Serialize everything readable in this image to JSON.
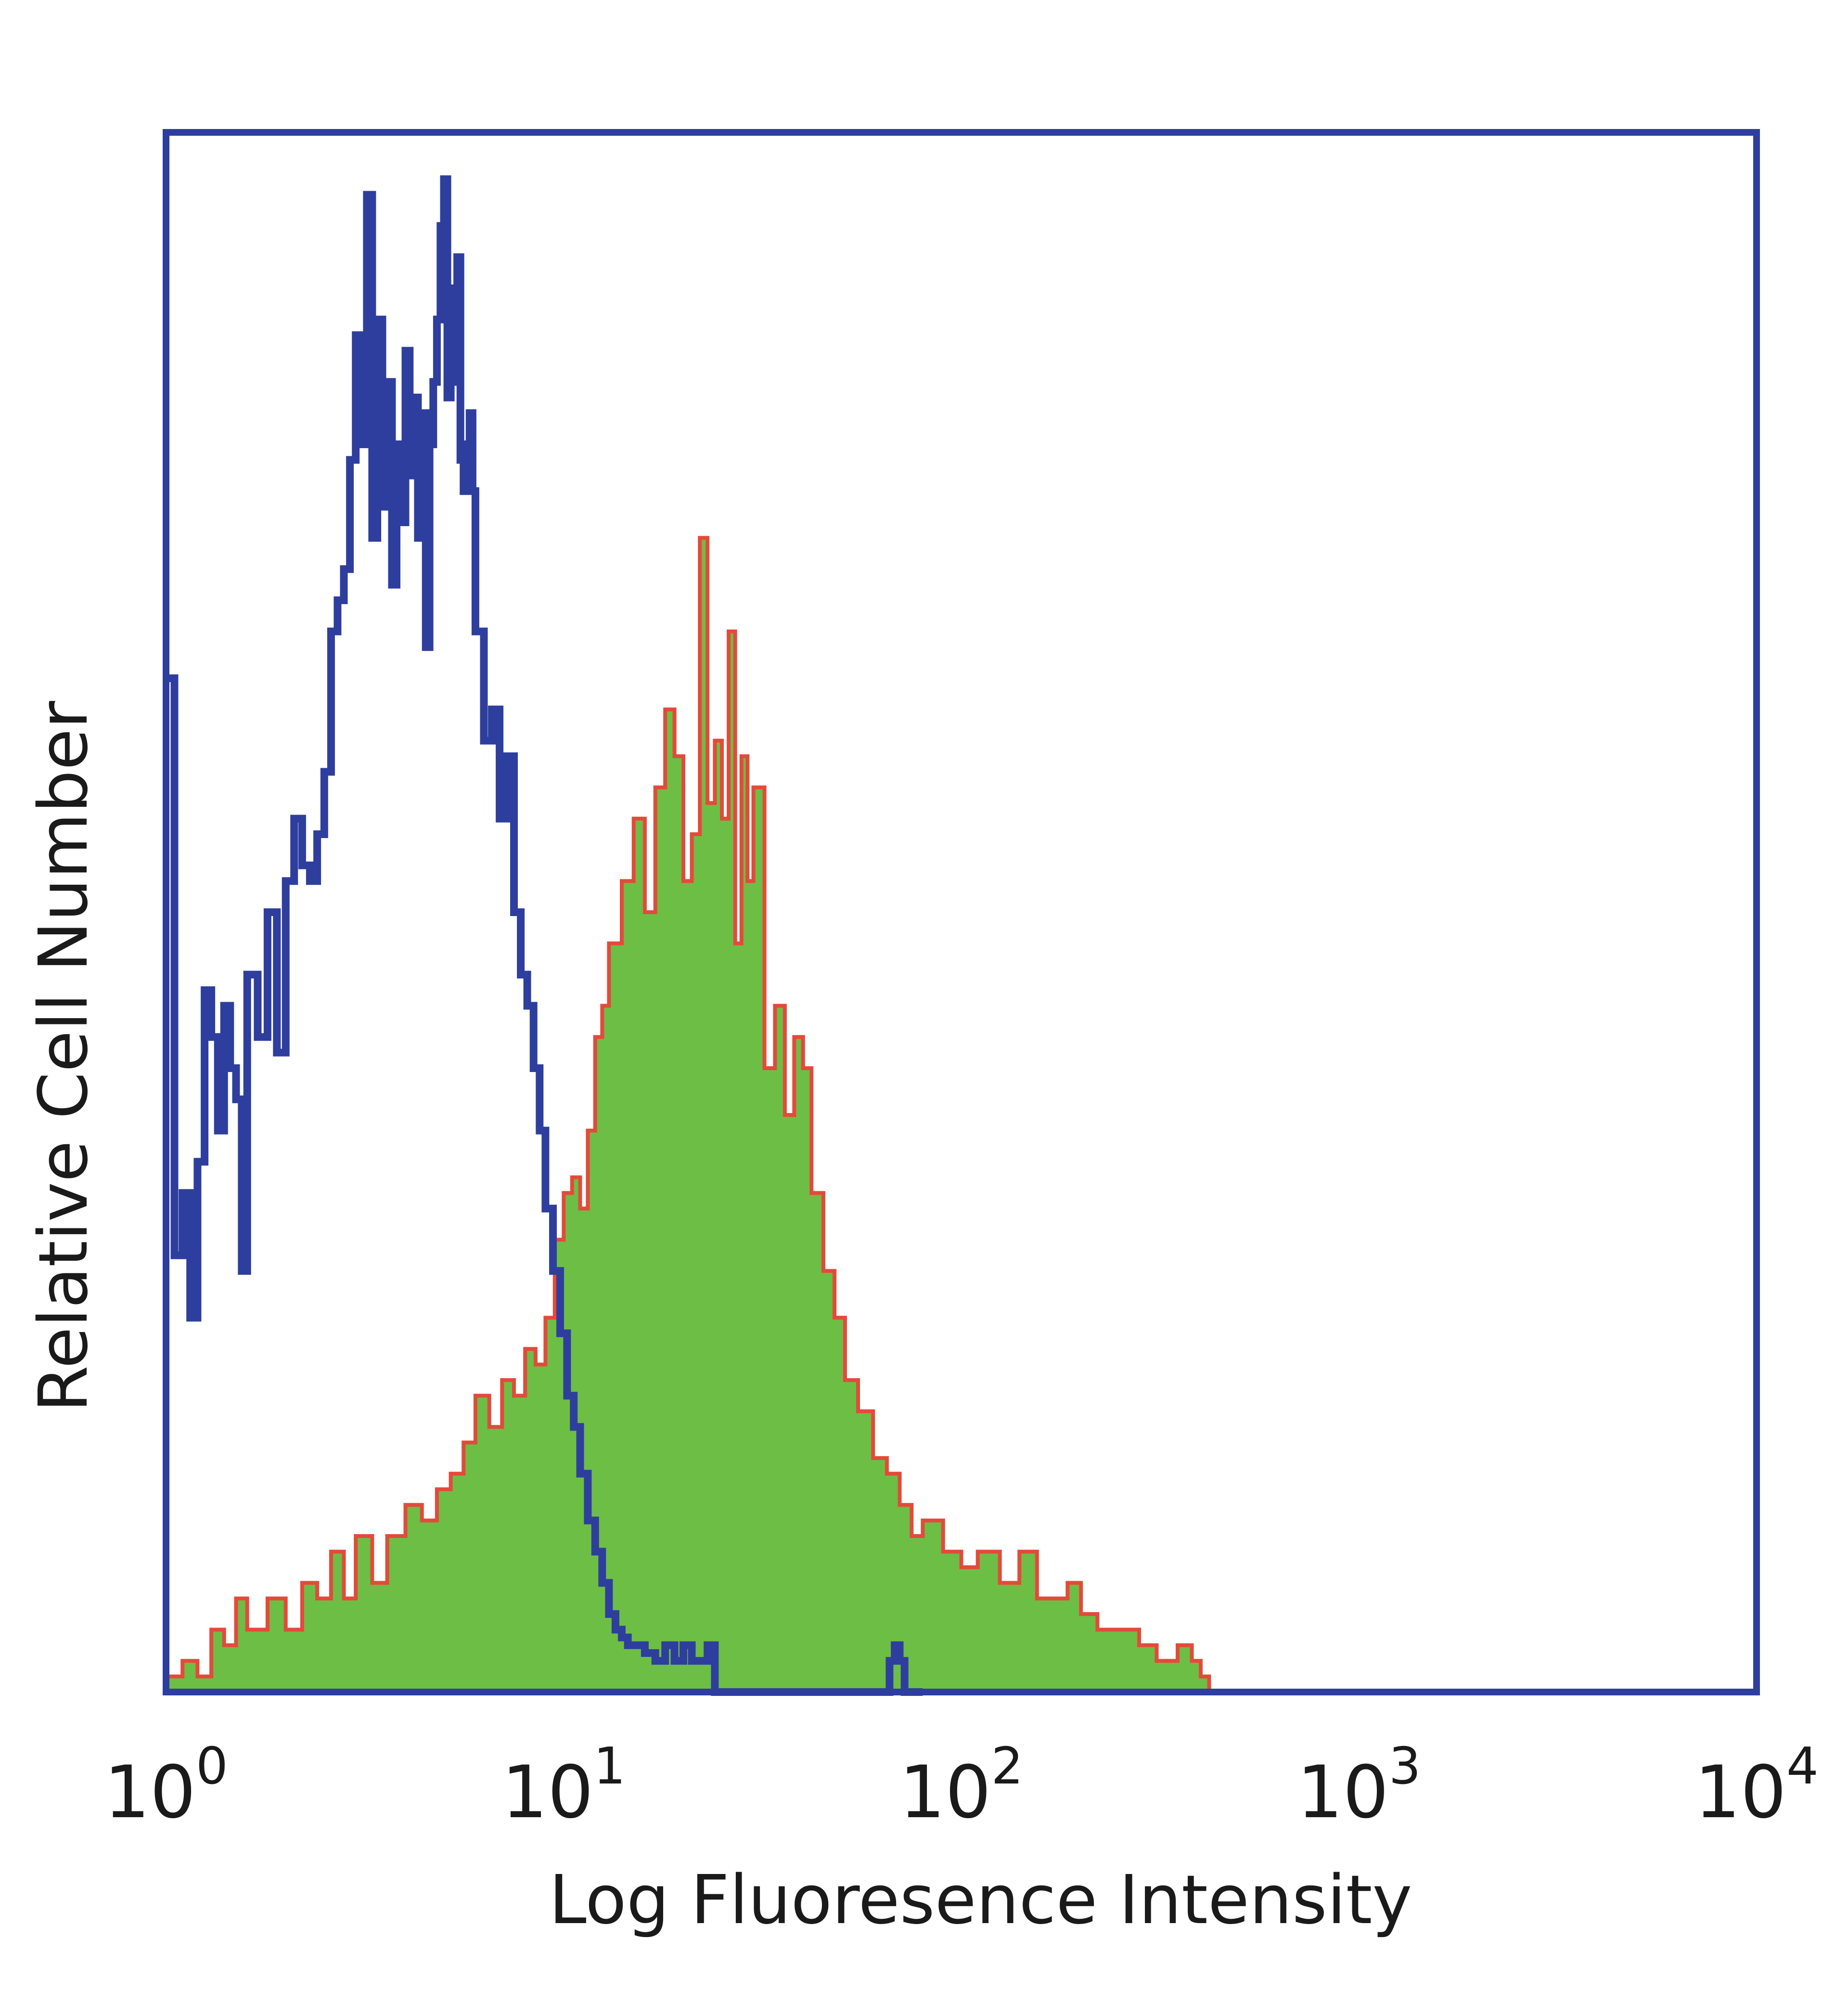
{
  "chart_data": {
    "type": "area",
    "xscale": "log",
    "xlim": [
      1,
      10000
    ],
    "ylim": [
      0,
      1
    ],
    "xlabel": "Log Fluoresence Intensity",
    "ylabel": "Relative Cell Number",
    "grid": false,
    "xticks": [
      {
        "base": "10",
        "exp": "0",
        "value": 1
      },
      {
        "base": "10",
        "exp": "1",
        "value": 10
      },
      {
        "base": "10",
        "exp": "2",
        "value": 100
      },
      {
        "base": "10",
        "exp": "3",
        "value": 1000
      },
      {
        "base": "10",
        "exp": "4",
        "value": 10000
      }
    ],
    "series": [
      {
        "style": "filled",
        "color": "#6dbe45",
        "edge_color": "#e34a3a",
        "x": [
          1.0,
          1.1,
          1.2,
          1.3,
          1.4,
          1.5,
          1.6,
          1.7,
          1.8,
          2.0,
          2.2,
          2.4,
          2.6,
          2.8,
          3.0,
          3.3,
          3.6,
          4.0,
          4.4,
          4.8,
          5.2,
          5.6,
          6.0,
          6.5,
          7.0,
          7.5,
          8.0,
          8.5,
          9.0,
          9.5,
          10.0,
          10.5,
          11.0,
          11.5,
          12.0,
          12.5,
          13.0,
          14.0,
          15.0,
          16.0,
          17.0,
          18.0,
          19.0,
          20.0,
          21.0,
          22.0,
          23.0,
          24.0,
          25.0,
          26.0,
          27.0,
          28.0,
          29.0,
          30.0,
          32.0,
          34.0,
          36.0,
          38.0,
          40.0,
          42.0,
          45.0,
          48.0,
          51.0,
          55.0,
          60.0,
          65.0,
          70.0,
          75.0,
          80.0,
          90.0,
          100.0,
          110.0,
          125.0,
          140.0,
          155.0,
          170.0,
          185.0,
          200.0,
          220.0,
          250.0,
          280.0,
          310.0,
          350.0,
          380.0,
          400.0,
          420.0
        ],
        "values": [
          0.01,
          0.02,
          0.01,
          0.04,
          0.03,
          0.06,
          0.04,
          0.04,
          0.06,
          0.04,
          0.07,
          0.06,
          0.09,
          0.06,
          0.1,
          0.07,
          0.1,
          0.12,
          0.11,
          0.13,
          0.14,
          0.16,
          0.19,
          0.17,
          0.2,
          0.19,
          0.22,
          0.21,
          0.24,
          0.29,
          0.32,
          0.33,
          0.31,
          0.36,
          0.42,
          0.44,
          0.48,
          0.52,
          0.56,
          0.5,
          0.58,
          0.63,
          0.6,
          0.52,
          0.55,
          0.74,
          0.57,
          0.61,
          0.56,
          0.68,
          0.48,
          0.6,
          0.52,
          0.58,
          0.4,
          0.44,
          0.37,
          0.42,
          0.4,
          0.32,
          0.27,
          0.24,
          0.2,
          0.18,
          0.15,
          0.14,
          0.12,
          0.1,
          0.11,
          0.09,
          0.08,
          0.09,
          0.07,
          0.09,
          0.06,
          0.06,
          0.07,
          0.05,
          0.04,
          0.04,
          0.03,
          0.02,
          0.03,
          0.02,
          0.01,
          0.0
        ]
      },
      {
        "style": "outline",
        "color": "#2e3e9e",
        "x": [
          1.0,
          1.05,
          1.1,
          1.15,
          1.2,
          1.25,
          1.3,
          1.35,
          1.4,
          1.45,
          1.5,
          1.55,
          1.6,
          1.7,
          1.8,
          1.9,
          2.0,
          2.1,
          2.2,
          2.3,
          2.4,
          2.5,
          2.6,
          2.7,
          2.8,
          2.9,
          3.0,
          3.1,
          3.2,
          3.3,
          3.4,
          3.5,
          3.6,
          3.7,
          3.8,
          3.9,
          4.0,
          4.1,
          4.2,
          4.3,
          4.4,
          4.5,
          4.6,
          4.7,
          4.8,
          4.9,
          5.0,
          5.1,
          5.2,
          5.3,
          5.4,
          5.5,
          5.6,
          5.7,
          5.8,
          5.9,
          6.0,
          6.3,
          6.6,
          6.9,
          7.2,
          7.5,
          7.8,
          8.1,
          8.4,
          8.7,
          9.0,
          9.4,
          9.8,
          10.2,
          10.6,
          11.0,
          11.5,
          12.0,
          12.5,
          13.0,
          13.5,
          14.0,
          14.5,
          15.0,
          16.0,
          17.0,
          18.0,
          19.0,
          20.0,
          21.0,
          22.0,
          23.0,
          24.0,
          30.0,
          40.0,
          50.0,
          60.0,
          66.0,
          68.0,
          70.0,
          72.0,
          80.0
        ],
        "values": [
          0.65,
          0.28,
          0.32,
          0.24,
          0.34,
          0.45,
          0.42,
          0.36,
          0.44,
          0.4,
          0.38,
          0.27,
          0.46,
          0.42,
          0.5,
          0.41,
          0.52,
          0.56,
          0.53,
          0.52,
          0.55,
          0.59,
          0.68,
          0.7,
          0.72,
          0.79,
          0.87,
          0.8,
          0.96,
          0.74,
          0.88,
          0.76,
          0.84,
          0.71,
          0.8,
          0.75,
          0.86,
          0.78,
          0.83,
          0.74,
          0.82,
          0.67,
          0.8,
          0.84,
          0.88,
          0.94,
          0.97,
          0.83,
          0.9,
          0.84,
          0.92,
          0.79,
          0.77,
          0.8,
          0.82,
          0.77,
          0.68,
          0.61,
          0.63,
          0.56,
          0.6,
          0.5,
          0.46,
          0.44,
          0.4,
          0.36,
          0.31,
          0.27,
          0.23,
          0.19,
          0.17,
          0.14,
          0.11,
          0.09,
          0.07,
          0.05,
          0.04,
          0.035,
          0.03,
          0.03,
          0.025,
          0.02,
          0.03,
          0.02,
          0.03,
          0.02,
          0.02,
          0.03,
          0.0,
          0.0,
          0.0,
          0.0,
          0.0,
          0.02,
          0.03,
          0.02,
          0.0,
          0.0
        ]
      }
    ]
  },
  "colors": {
    "frame": "#2e3e9e",
    "outline": "#2e3e9e",
    "fill": "#6dbe45",
    "edge": "#e34a3a"
  }
}
